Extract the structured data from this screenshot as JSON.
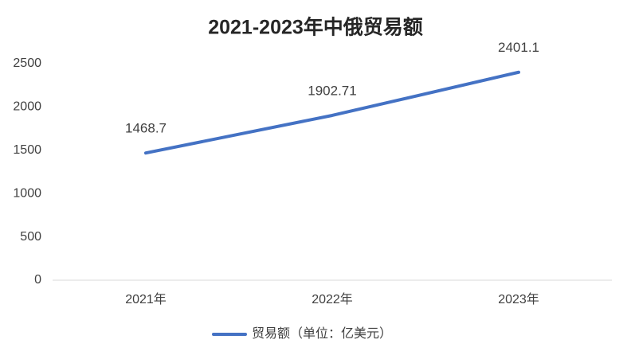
{
  "chart_data": {
    "type": "line",
    "title": "2021-2023年中俄贸易额",
    "categories": [
      "2021年",
      "2022年",
      "2023年"
    ],
    "series": [
      {
        "name": "贸易额（单位：亿美元）",
        "color": "#4472c4",
        "values": [
          1468.7,
          1902.71,
          2401.1
        ]
      }
    ],
    "ylim": [
      0,
      2500
    ],
    "yticks": [
      0,
      500,
      1000,
      1500,
      2000,
      2500
    ],
    "grid": false,
    "legend": "bottom",
    "data_labels": true
  }
}
